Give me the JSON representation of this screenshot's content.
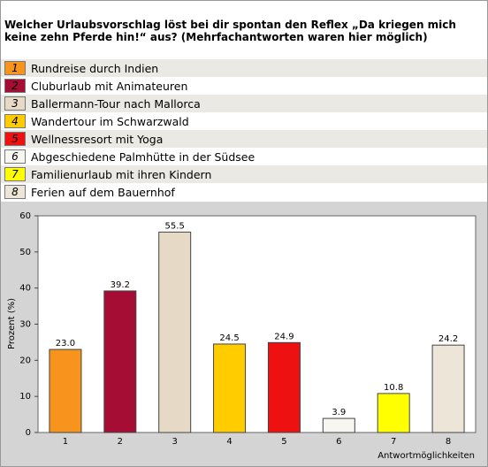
{
  "chart_data": {
    "type": "bar",
    "title": "Welcher Urlaubsvorschlag löst bei dir spontan den Reflex „Da kriegen mich keine zehn Pferde hin!“ aus? (Mehrfachantworten waren hier möglich)",
    "categories": [
      "1",
      "2",
      "3",
      "4",
      "5",
      "6",
      "7",
      "8"
    ],
    "labels": [
      "Rundreise durch Indien",
      "Cluburlaub mit Animateuren",
      "Ballermann-Tour nach Mallorca",
      "Wandertour im Schwarzwald",
      "Wellnessresort mit Yoga",
      "Abgeschiedene Palmhütte in der Südsee",
      "Familienurlaub mit ihren Kindern",
      "Ferien auf dem Bauernhof"
    ],
    "values": [
      23,
      39.2,
      55.5,
      24.5,
      24.9,
      3.9,
      10.8,
      24.2
    ],
    "value_labels": [
      "23.0",
      "39.2",
      "55.5",
      "24.5",
      "24.9",
      "3.9",
      "10.8",
      "24.2"
    ],
    "colors": [
      "#f7941d",
      "#a50d34",
      "#e6dac6",
      "#ffcc00",
      "#ee1111",
      "#f8f6f0",
      "#ffff00",
      "#ede6d8"
    ],
    "ylabel": "Prozent (%)",
    "xlabel": "Antwortmöglichkeiten",
    "ylim": [
      0,
      60
    ],
    "yticks": [
      0,
      10,
      20,
      30,
      40,
      50,
      60
    ]
  }
}
